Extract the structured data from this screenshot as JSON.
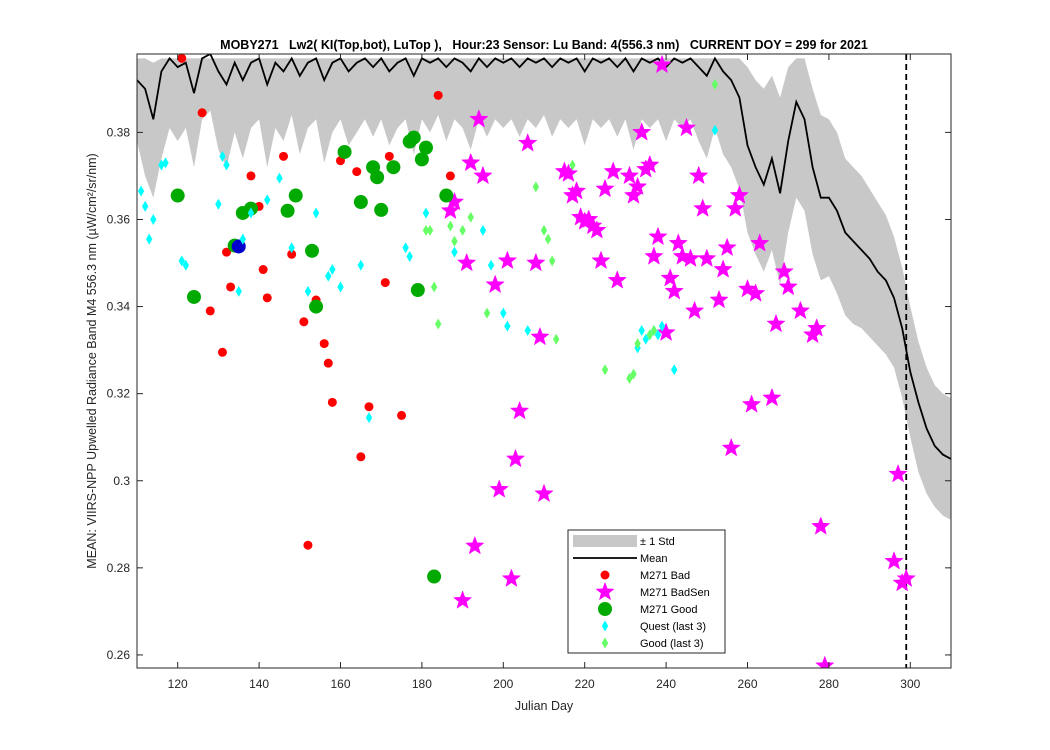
{
  "chart_data": {
    "type": "scatter",
    "title": "MOBY271   Lw2( KI(Top,bot), LuTop ),   Hour:23 Sensor: Lu Band: 4(556.3 nm)   CURRENT DOY = 299 for 2021",
    "xlabel": "Julian Day",
    "ylabel": "MEAN: VIIRS-NPP Upwelled Radiance Band M4 556.3 nm (µW/cm²/sr/nm)",
    "xlim": [
      110,
      310
    ],
    "ylim": [
      0.257,
      0.398
    ],
    "xticks": [
      120,
      140,
      160,
      180,
      200,
      220,
      240,
      260,
      280,
      300
    ],
    "yticks": [
      0.26,
      0.28,
      0.3,
      0.32,
      0.34,
      0.36,
      0.38
    ],
    "ytick_labels": [
      "0.26",
      "0.28",
      "0.3",
      "0.32",
      "0.34",
      "0.36",
      "0.38"
    ],
    "current_doy": 299,
    "legend_position": "lower-center",
    "legend": [
      {
        "label": "± 1 Std",
        "style": "band",
        "color": "#c8c8c8"
      },
      {
        "label": "Mean",
        "style": "line",
        "color": "#000000"
      },
      {
        "label": "M271 Bad",
        "style": "dot",
        "color": "#ff0000"
      },
      {
        "label": "M271 BadSen",
        "style": "star",
        "color": "#ff00ff"
      },
      {
        "label": "M271 Good",
        "style": "bigdot",
        "color": "#00aa00"
      },
      {
        "label": "Quest (last 3)",
        "style": "diamond",
        "color": "#00ffff"
      },
      {
        "label": "Good (last 3)",
        "style": "diamond",
        "color": "#66ff66"
      }
    ],
    "mean": {
      "name": "Mean",
      "x": [
        110,
        112,
        114,
        116,
        118,
        120,
        122,
        124,
        126,
        128,
        130,
        132,
        134,
        136,
        138,
        140,
        142,
        144,
        146,
        148,
        150,
        152,
        154,
        156,
        158,
        160,
        162,
        164,
        166,
        168,
        170,
        172,
        174,
        176,
        178,
        180,
        182,
        184,
        186,
        188,
        190,
        192,
        194,
        196,
        198,
        200,
        202,
        204,
        206,
        208,
        210,
        212,
        214,
        216,
        218,
        220,
        222,
        224,
        226,
        228,
        230,
        232,
        234,
        236,
        238,
        240,
        242,
        244,
        246,
        248,
        250,
        252,
        254,
        256,
        258,
        260,
        262,
        264,
        266,
        268,
        270,
        272,
        274,
        276,
        278,
        280,
        282,
        284,
        286,
        288,
        290,
        292,
        294,
        296,
        298,
        300,
        302,
        304,
        306,
        308,
        310
      ],
      "values": [
        0.392,
        0.39,
        0.383,
        0.394,
        0.397,
        0.395,
        0.396,
        0.389,
        0.397,
        0.398,
        0.394,
        0.391,
        0.396,
        0.392,
        0.396,
        0.397,
        0.391,
        0.396,
        0.394,
        0.397,
        0.393,
        0.396,
        0.397,
        0.392,
        0.396,
        0.397,
        0.394,
        0.396,
        0.397,
        0.395,
        0.397,
        0.394,
        0.396,
        0.397,
        0.393,
        0.397,
        0.396,
        0.397,
        0.395,
        0.397,
        0.396,
        0.394,
        0.397,
        0.395,
        0.397,
        0.396,
        0.397,
        0.395,
        0.397,
        0.396,
        0.397,
        0.395,
        0.397,
        0.396,
        0.397,
        0.394,
        0.397,
        0.396,
        0.397,
        0.395,
        0.397,
        0.394,
        0.397,
        0.396,
        0.397,
        0.395,
        0.397,
        0.396,
        0.397,
        0.395,
        0.393,
        0.397,
        0.394,
        0.392,
        0.388,
        0.377,
        0.372,
        0.368,
        0.374,
        0.366,
        0.378,
        0.387,
        0.383,
        0.372,
        0.365,
        0.365,
        0.362,
        0.357,
        0.355,
        0.353,
        0.351,
        0.348,
        0.346,
        0.342,
        0.335,
        0.325,
        0.318,
        0.312,
        0.308,
        0.306,
        0.305
      ]
    },
    "std_upper": [
      0.397,
      0.397,
      0.396,
      0.397,
      0.397,
      0.397,
      0.397,
      0.397,
      0.397,
      0.397,
      0.397,
      0.397,
      0.397,
      0.397,
      0.397,
      0.397,
      0.397,
      0.397,
      0.397,
      0.397,
      0.397,
      0.397,
      0.397,
      0.397,
      0.397,
      0.397,
      0.397,
      0.397,
      0.397,
      0.397,
      0.397,
      0.397,
      0.397,
      0.397,
      0.397,
      0.397,
      0.397,
      0.397,
      0.397,
      0.397,
      0.397,
      0.397,
      0.397,
      0.397,
      0.397,
      0.397,
      0.397,
      0.397,
      0.397,
      0.397,
      0.397,
      0.397,
      0.397,
      0.397,
      0.397,
      0.397,
      0.397,
      0.397,
      0.397,
      0.397,
      0.397,
      0.397,
      0.397,
      0.397,
      0.397,
      0.397,
      0.397,
      0.397,
      0.397,
      0.397,
      0.397,
      0.397,
      0.397,
      0.397,
      0.397,
      0.395,
      0.392,
      0.39,
      0.393,
      0.388,
      0.395,
      0.397,
      0.397,
      0.39,
      0.384,
      0.383,
      0.38,
      0.374,
      0.372,
      0.37,
      0.367,
      0.364,
      0.361,
      0.356,
      0.349,
      0.34,
      0.332,
      0.326,
      0.322,
      0.32,
      0.319
    ],
    "std_lower": [
      0.378,
      0.37,
      0.365,
      0.374,
      0.381,
      0.378,
      0.381,
      0.372,
      0.383,
      0.385,
      0.376,
      0.372,
      0.38,
      0.374,
      0.381,
      0.383,
      0.372,
      0.381,
      0.378,
      0.384,
      0.375,
      0.381,
      0.383,
      0.373,
      0.38,
      0.383,
      0.377,
      0.38,
      0.383,
      0.379,
      0.383,
      0.377,
      0.381,
      0.383,
      0.375,
      0.383,
      0.38,
      0.384,
      0.378,
      0.383,
      0.381,
      0.376,
      0.383,
      0.379,
      0.383,
      0.381,
      0.383,
      0.379,
      0.383,
      0.381,
      0.384,
      0.379,
      0.383,
      0.381,
      0.383,
      0.377,
      0.383,
      0.381,
      0.383,
      0.379,
      0.383,
      0.376,
      0.383,
      0.381,
      0.383,
      0.378,
      0.383,
      0.381,
      0.383,
      0.378,
      0.374,
      0.381,
      0.375,
      0.372,
      0.367,
      0.357,
      0.352,
      0.348,
      0.353,
      0.345,
      0.357,
      0.365,
      0.362,
      0.352,
      0.346,
      0.347,
      0.343,
      0.338,
      0.336,
      0.335,
      0.333,
      0.331,
      0.329,
      0.326,
      0.319,
      0.31,
      0.302,
      0.297,
      0.294,
      0.292,
      0.291
    ],
    "series": [
      {
        "name": "M271 Bad",
        "marker": "dot",
        "color": "#ff0000",
        "x": [
          121,
          126,
          128,
          131,
          132,
          133,
          138,
          140,
          141,
          142,
          146,
          148,
          151,
          152,
          154,
          156,
          157,
          158,
          160,
          164,
          165,
          167,
          171,
          172,
          175,
          184,
          187
        ],
        "values": [
          0.397,
          0.3845,
          0.339,
          0.3295,
          0.3525,
          0.3445,
          0.37,
          0.363,
          0.3485,
          0.342,
          0.3745,
          0.352,
          0.3365,
          0.2852,
          0.3415,
          0.3315,
          0.327,
          0.318,
          0.3735,
          0.371,
          0.3055,
          0.317,
          0.3455,
          0.3745,
          0.315,
          0.3885,
          0.37
        ]
      },
      {
        "name": "M271 BadSen",
        "marker": "star",
        "color": "#ff00ff",
        "x": [
          187,
          188,
          190,
          191,
          192,
          193,
          194,
          195,
          198,
          199,
          201,
          202,
          203,
          204,
          206,
          208,
          209,
          210,
          215,
          216,
          217,
          218,
          219,
          220,
          221,
          222,
          223,
          224,
          225,
          227,
          228,
          231,
          232,
          233,
          234,
          235,
          236,
          237,
          238,
          239,
          240,
          241,
          242,
          243,
          244,
          245,
          246,
          247,
          248,
          249,
          250,
          253,
          254,
          255,
          256,
          257,
          258,
          260,
          261,
          262,
          263,
          266,
          267,
          269,
          270,
          273,
          276,
          277,
          278,
          279,
          296,
          297,
          298,
          299
        ],
        "values": [
          0.362,
          0.364,
          0.2725,
          0.35,
          0.373,
          0.285,
          0.383,
          0.37,
          0.345,
          0.298,
          0.3505,
          0.2775,
          0.305,
          0.316,
          0.3775,
          0.35,
          0.333,
          0.297,
          0.371,
          0.3705,
          0.3655,
          0.3665,
          0.3605,
          0.3595,
          0.36,
          0.3585,
          0.3575,
          0.3505,
          0.367,
          0.371,
          0.346,
          0.37,
          0.3655,
          0.3675,
          0.38,
          0.3715,
          0.3725,
          0.3515,
          0.356,
          0.3955,
          0.334,
          0.3465,
          0.3435,
          0.3545,
          0.3515,
          0.381,
          0.351,
          0.339,
          0.37,
          0.3625,
          0.351,
          0.3415,
          0.3485,
          0.3535,
          0.3075,
          0.3625,
          0.3655,
          0.344,
          0.3175,
          0.343,
          0.3545,
          0.319,
          0.336,
          0.348,
          0.3445,
          0.339,
          0.3335,
          0.335,
          0.2895,
          0.2575,
          0.2815,
          0.3015,
          0.2765,
          0.2775
        ]
      },
      {
        "name": "M271 Good",
        "marker": "bigdot",
        "color": "#00aa00",
        "x": [
          120,
          124,
          134,
          136,
          138,
          147,
          149,
          153,
          154,
          161,
          165,
          168,
          169,
          170,
          173,
          177,
          178,
          179,
          180,
          181,
          183,
          186
        ],
        "values": [
          0.3655,
          0.3422,
          0.354,
          0.3615,
          0.3625,
          0.362,
          0.3655,
          0.3528,
          0.34,
          0.3755,
          0.364,
          0.372,
          0.3697,
          0.3622,
          0.372,
          0.3779,
          0.3788,
          0.3438,
          0.3738,
          0.3765,
          0.278,
          0.3655
        ]
      },
      {
        "name": "Blue point",
        "marker": "bigdot",
        "color": "#0000cc",
        "x": [
          135
        ],
        "values": [
          0.3538
        ]
      },
      {
        "name": "Quest (last 3)",
        "marker": "diamond",
        "color": "#00ffff",
        "x": [
          111,
          112,
          113,
          114,
          116,
          117,
          121,
          122,
          130,
          131,
          132,
          135,
          136,
          138,
          142,
          145,
          148,
          152,
          154,
          157,
          158,
          160,
          165,
          167,
          176,
          177,
          181,
          188,
          195,
          197,
          200,
          201,
          206,
          233,
          234,
          235,
          236,
          237,
          238,
          239,
          242,
          252
        ],
        "values": [
          0.3665,
          0.363,
          0.3555,
          0.36,
          0.3725,
          0.373,
          0.3505,
          0.3495,
          0.3635,
          0.3745,
          0.3725,
          0.3435,
          0.3555,
          0.3615,
          0.3645,
          0.3695,
          0.3535,
          0.3435,
          0.3615,
          0.347,
          0.3485,
          0.3445,
          0.3495,
          0.3145,
          0.3535,
          0.3515,
          0.3615,
          0.3525,
          0.3575,
          0.3495,
          0.3385,
          0.3355,
          0.3345,
          0.3305,
          0.3345,
          0.3325,
          0.3335,
          0.3345,
          0.3335,
          0.3355,
          0.3255,
          0.3805
        ]
      },
      {
        "name": "Good (last 3)",
        "marker": "diamond",
        "color": "#66ff66",
        "x": [
          181,
          182,
          183,
          184,
          187,
          188,
          190,
          192,
          196,
          208,
          210,
          211,
          212,
          213,
          217,
          225,
          231,
          232,
          233,
          236,
          237,
          252
        ],
        "values": [
          0.3575,
          0.3575,
          0.3445,
          0.336,
          0.3585,
          0.355,
          0.3575,
          0.3605,
          0.3385,
          0.3675,
          0.3575,
          0.3555,
          0.3505,
          0.3325,
          0.3725,
          0.3255,
          0.3235,
          0.3245,
          0.3315,
          0.3335,
          0.3345,
          0.391
        ]
      }
    ]
  }
}
